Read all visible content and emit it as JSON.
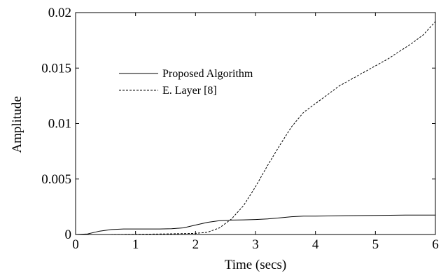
{
  "chart_data": {
    "type": "line",
    "xlabel": "Time (secs)",
    "ylabel": "Amplitude",
    "xlim": [
      0,
      6
    ],
    "ylim": [
      0,
      0.02
    ],
    "x_ticks": [
      "0",
      "1",
      "2",
      "3",
      "4",
      "5",
      "6"
    ],
    "y_ticks": [
      "0",
      "0.005",
      "0.01",
      "0.015",
      "0.02"
    ],
    "grid": false,
    "legend_position": "upper-left",
    "series": [
      {
        "name": "Proposed Algorithm",
        "style": "solid",
        "color": "#000000",
        "x": [
          0,
          0.2,
          0.4,
          0.6,
          0.8,
          1.0,
          1.2,
          1.4,
          1.6,
          1.8,
          2.0,
          2.2,
          2.4,
          2.6,
          2.8,
          3.0,
          3.2,
          3.4,
          3.6,
          3.8,
          4.0,
          4.5,
          5.0,
          5.5,
          6.0
        ],
        "y": [
          0,
          5e-05,
          0.0003,
          0.00045,
          0.0005,
          0.0005,
          0.0005,
          0.0005,
          0.00052,
          0.0006,
          0.00085,
          0.0011,
          0.00125,
          0.0013,
          0.00132,
          0.00135,
          0.0014,
          0.0015,
          0.0016,
          0.00165,
          0.00165,
          0.0017,
          0.00172,
          0.00175,
          0.00175
        ]
      },
      {
        "name": "E. Layer [8]",
        "style": "dashed",
        "color": "#000000",
        "x": [
          0,
          0.5,
          1.0,
          1.5,
          2.0,
          2.2,
          2.4,
          2.6,
          2.8,
          3.0,
          3.2,
          3.4,
          3.6,
          3.8,
          4.0,
          4.2,
          4.4,
          4.6,
          4.8,
          5.0,
          5.2,
          5.4,
          5.6,
          5.8,
          6.0
        ],
        "y": [
          0,
          0,
          2e-05,
          5e-05,
          0.0001,
          0.0002,
          0.0006,
          0.0014,
          0.0026,
          0.0043,
          0.0062,
          0.008,
          0.0097,
          0.011,
          0.0118,
          0.0126,
          0.0134,
          0.014,
          0.0146,
          0.0152,
          0.0158,
          0.0165,
          0.0172,
          0.018,
          0.0192
        ]
      }
    ]
  }
}
